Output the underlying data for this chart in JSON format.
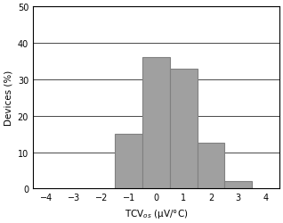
{
  "bar_positions": [
    -1,
    0,
    1,
    2,
    3
  ],
  "bar_heights": [
    15,
    36,
    33,
    12.5,
    2
  ],
  "bar_width": 1.0,
  "bar_color": "#a0a0a0",
  "bar_edgecolor": "#808080",
  "xlim": [
    -4.5,
    4.5
  ],
  "ylim": [
    0,
    50
  ],
  "xticks": [
    -4,
    -3,
    -2,
    -1,
    0,
    1,
    2,
    3,
    4
  ],
  "yticks": [
    0,
    10,
    20,
    30,
    40,
    50
  ],
  "xlabel": "TCV$_{os}$ (μV/°C)",
  "ylabel": "Devices (%)",
  "xlabel_fontsize": 7.5,
  "ylabel_fontsize": 7.5,
  "tick_fontsize": 7,
  "grid_color": "#000000",
  "grid_linewidth": 0.5,
  "background_color": "#ffffff",
  "spine_color": "#000000"
}
